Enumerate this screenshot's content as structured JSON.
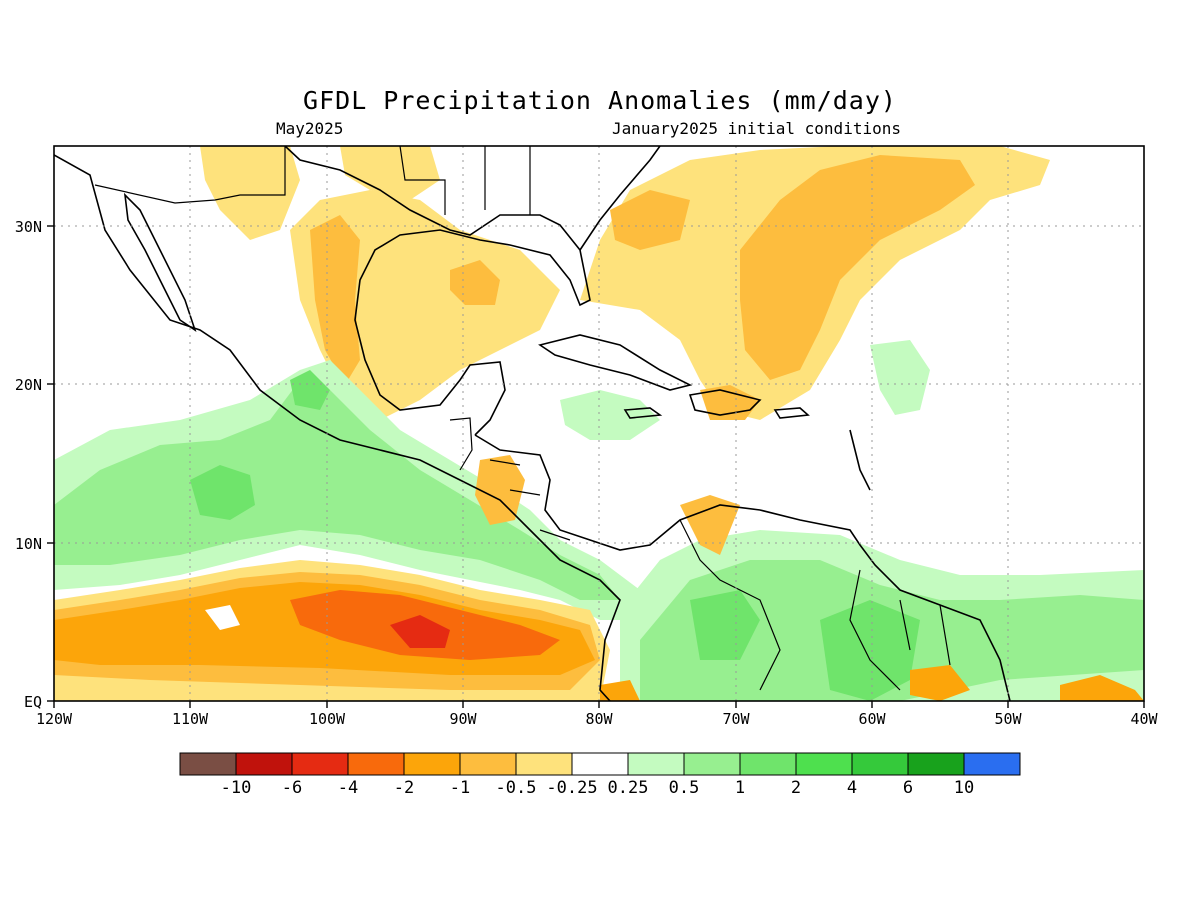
{
  "header": {
    "title": "GFDL Precipitation Anomalies (mm/day)",
    "valid_month": "May2025",
    "init_label": "January2025 initial conditions"
  },
  "map": {
    "region": "Central America / Caribbean",
    "lon_range": [
      -120,
      -40
    ],
    "lat_range": [
      0,
      35
    ],
    "x_ticks": [
      "120W",
      "110W",
      "100W",
      "90W",
      "80W",
      "70W",
      "60W",
      "50W",
      "40W"
    ],
    "y_ticks": [
      "EQ",
      "10N",
      "20N",
      "30N"
    ],
    "grid": "dotted"
  },
  "legend": {
    "labels": [
      "-10",
      "-6",
      "-4",
      "-2",
      "-1",
      "-0.5",
      "-0.25",
      "0.25",
      "0.5",
      "1",
      "2",
      "4",
      "6",
      "10"
    ],
    "colors": [
      "#7a4e44",
      "#c0120c",
      "#e52b12",
      "#f86a0c",
      "#fca50a",
      "#fdbd3e",
      "#fee27c",
      "#ffffff",
      "#c4fbc0",
      "#97ef90",
      "#6fe46b",
      "#4ee04e",
      "#35c93b",
      "#18a21c",
      "#2a6ef0"
    ]
  },
  "colors": {
    "dry_light": "#fee27c",
    "dry_medium": "#fdbd3e",
    "dry_strong": "#fca50a",
    "dry_heavy": "#f86a0c",
    "dry_extreme": "#e52b12",
    "wet_light": "#c4fbc0",
    "wet_medium": "#97ef90",
    "wet_strong": "#6fe46b"
  }
}
